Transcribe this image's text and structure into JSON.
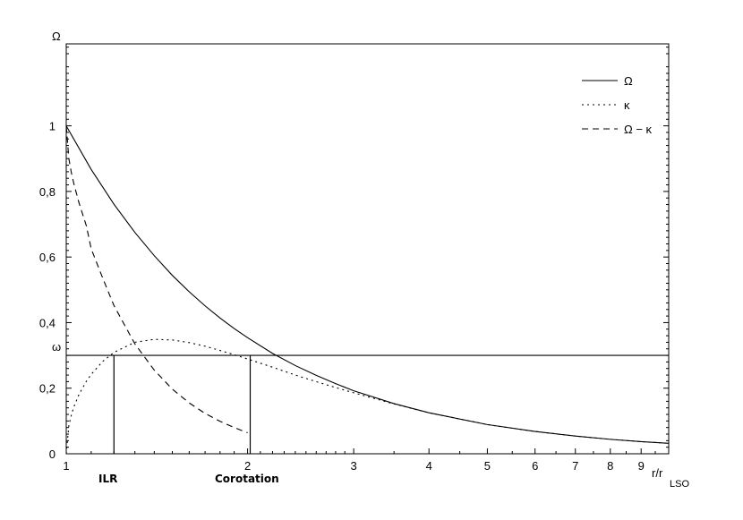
{
  "chart_data": {
    "type": "line",
    "title": "",
    "xlabel": "r/r",
    "xlabel_subscript": "LSO",
    "ylabel": "Ω",
    "x_scale": "log",
    "xlim": [
      1,
      10
    ],
    "ylim": [
      0,
      1.25
    ],
    "grid": false,
    "legend_position": "top-right",
    "x_ticks": [
      1,
      2,
      3,
      4,
      5,
      6,
      7,
      8,
      9
    ],
    "x_tick_labels": [
      "1",
      "2",
      "3",
      "4",
      "5",
      "6",
      "7",
      "8",
      "9"
    ],
    "y_ticks": [
      0,
      0.2,
      0.4,
      0.6,
      0.8,
      1
    ],
    "y_tick_labels": [
      "0",
      "0,2",
      "0,4",
      "0,6",
      "0,8",
      "1"
    ],
    "hline": {
      "y": 0.3,
      "label": "ω"
    },
    "vlines": [
      {
        "x": 1.2,
        "label": "ILR"
      },
      {
        "x": 2.02,
        "label": "Corotation"
      }
    ],
    "series": [
      {
        "name": "Ω",
        "style": "solid",
        "x": [
          1,
          1.1,
          1.2,
          1.3,
          1.4,
          1.5,
          1.6,
          1.7,
          1.8,
          1.9,
          2,
          2.2,
          2.4,
          2.6,
          2.8,
          3,
          3.5,
          4,
          5,
          6,
          7,
          8,
          9,
          10
        ],
        "y": [
          1.0,
          0.867,
          0.761,
          0.675,
          0.604,
          0.544,
          0.494,
          0.451,
          0.414,
          0.382,
          0.354,
          0.306,
          0.269,
          0.239,
          0.214,
          0.192,
          0.153,
          0.125,
          0.089,
          0.068,
          0.054,
          0.044,
          0.037,
          0.032
        ]
      },
      {
        "name": "κ",
        "style": "dotted",
        "x": [
          1,
          1.01,
          1.02,
          1.03,
          1.05,
          1.08,
          1.1,
          1.15,
          1.2,
          1.3,
          1.4,
          1.5,
          1.6,
          1.7,
          1.8,
          1.9,
          2,
          2.2,
          2.4,
          2.6,
          2.8,
          3,
          3.5,
          4,
          5,
          6,
          7,
          8,
          9,
          10
        ],
        "y": [
          0,
          0.086,
          0.119,
          0.144,
          0.181,
          0.221,
          0.242,
          0.282,
          0.309,
          0.34,
          0.349,
          0.347,
          0.339,
          0.328,
          0.315,
          0.302,
          0.289,
          0.264,
          0.24,
          0.22,
          0.202,
          0.186,
          0.152,
          0.125,
          0.089,
          0.068,
          0.054,
          0.044,
          0.037,
          0.032
        ]
      },
      {
        "name": "Ω − κ",
        "style": "dashed",
        "x": [
          1,
          1.01,
          1.02,
          1.03,
          1.05,
          1.08,
          1.1,
          1.15,
          1.2,
          1.3,
          1.4,
          1.5,
          1.6,
          1.7,
          1.8,
          1.9,
          2
        ],
        "y": [
          1.0,
          0.9,
          0.856,
          0.822,
          0.765,
          0.695,
          0.625,
          0.535,
          0.452,
          0.335,
          0.255,
          0.197,
          0.155,
          0.123,
          0.099,
          0.08,
          0.064
        ]
      }
    ],
    "annotations": [
      "ILR",
      "Corotation"
    ]
  }
}
